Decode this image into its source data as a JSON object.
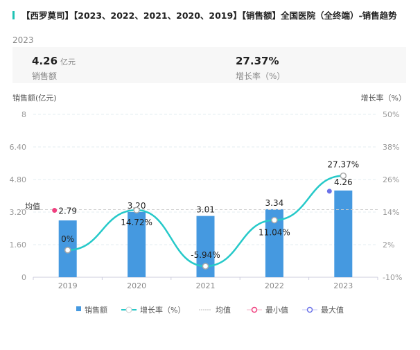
{
  "title": "【西罗莫司】【2023、2022、2021、2020、2019】【销售额】全国医院（全终端）-销售趋势",
  "summary": {
    "year": "2023",
    "sales_value": "4.26",
    "sales_unit": "亿元",
    "sales_label": "销售额",
    "growth_value": "27.37%",
    "growth_label": "增长率（%）"
  },
  "chart_data": {
    "type": "bar+line",
    "categories": [
      "2019",
      "2020",
      "2021",
      "2022",
      "2023"
    ],
    "series": [
      {
        "name": "销售额",
        "type": "bar",
        "values": [
          2.79,
          3.2,
          3.01,
          3.34,
          4.26
        ],
        "labels": [
          "2.79",
          "3.20",
          "3.01",
          "3.34",
          "4.26"
        ],
        "color": "#4599e0"
      },
      {
        "name": "增长率（%）",
        "type": "line",
        "values": [
          0,
          14.72,
          -5.94,
          11.04,
          27.37
        ],
        "labels": [
          "0%",
          "14.72%",
          "-5.94%",
          "11.04%",
          "27.37%"
        ],
        "color": "#26c9c9"
      }
    ],
    "average": {
      "label": "均值",
      "value": 3.32
    },
    "ylabel_left": "销售额(亿元)",
    "ylabel_right": "增长率（%）",
    "ylim_left": [
      0,
      8
    ],
    "ylim_right": [
      -10,
      50
    ],
    "yticks_left": [
      "0",
      "1.60",
      "3.20",
      "4.80",
      "6.40",
      "8"
    ],
    "yticks_right": [
      "-10%",
      "2%",
      "14%",
      "26%",
      "38%",
      "50%"
    ],
    "legend": [
      "销售额",
      "增长率（%）",
      "均值",
      "最小值",
      "最大值"
    ],
    "legend_position": "bottom",
    "min_color": "#f0407f",
    "max_color": "#6b72e8"
  }
}
